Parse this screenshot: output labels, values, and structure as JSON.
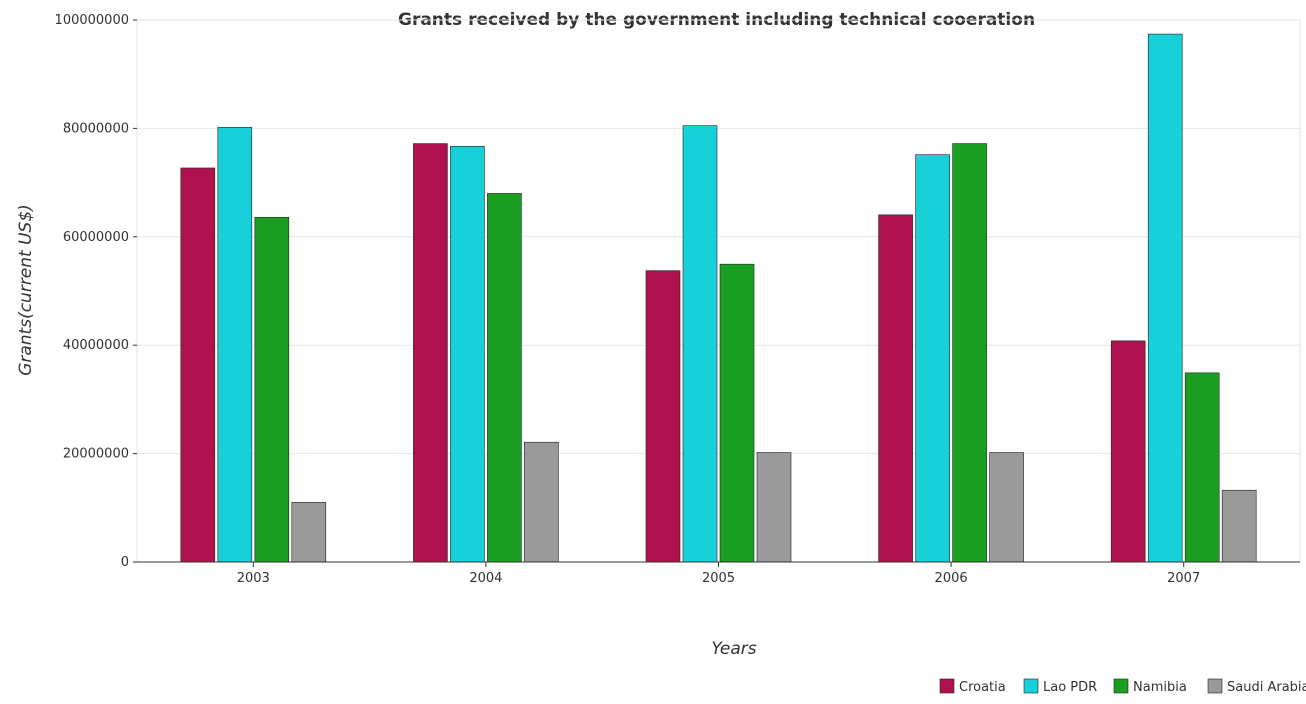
{
  "chart_data": {
    "type": "bar",
    "title": "Grants received by the government including technical cooeration",
    "xlabel": "Years",
    "ylabel": "Grants(current US$)",
    "categories": [
      "2003",
      "2004",
      "2005",
      "2006",
      "2007"
    ],
    "ylim": [
      0,
      100000000
    ],
    "yticks": [
      0,
      20000000,
      40000000,
      60000000,
      80000000,
      100000000
    ],
    "ytick_labels": [
      "0",
      "20000000",
      "40000000",
      "60000000",
      "80000000",
      "100000000"
    ],
    "grid": true,
    "legend_position": "bottom-right",
    "series": [
      {
        "name": "Croatia",
        "color": "#b0124f",
        "values": [
          72700000,
          77200000,
          53750000,
          64050000,
          40800000
        ]
      },
      {
        "name": "Lao PDR",
        "color": "#18d0d8",
        "values": [
          80200000,
          76700000,
          80500000,
          75150000,
          97400000
        ]
      },
      {
        "name": "Namibia",
        "color": "#1a9e22",
        "values": [
          63600000,
          68000000,
          54950000,
          77200000,
          34900000
        ]
      },
      {
        "name": "Saudi Arabia",
        "color": "#9a9a9a",
        "values": [
          11000000,
          22100000,
          20200000,
          20200000,
          13250000
        ]
      }
    ]
  }
}
